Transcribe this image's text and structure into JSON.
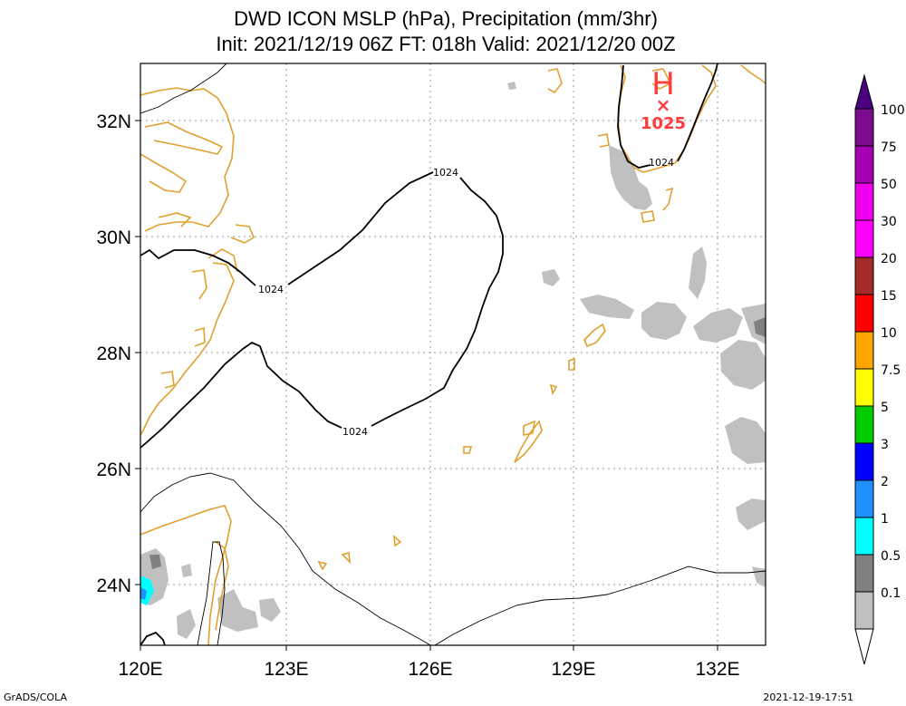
{
  "title_line1": "DWD ICON MSLP (hPa), Precipitation (mm/3hr)",
  "title_line2": "Init: 2021/12/19 06Z  FT: 018h  Valid: 2021/12/20 00Z",
  "lat_labels": [
    "32N",
    "30N",
    "28N",
    "26N",
    "24N"
  ],
  "lon_labels": [
    "120E",
    "123E",
    "126E",
    "129E",
    "132E"
  ],
  "isobar_labels": [
    "1024",
    "1024",
    "1024",
    "1024"
  ],
  "high": {
    "symbol": "H",
    "marker": "×",
    "pressure": "1025"
  },
  "colorbar": {
    "labels": [
      "100",
      "75",
      "50",
      "30",
      "20",
      "15",
      "10",
      "7.5",
      "5",
      "3",
      "2",
      "1",
      "0.5",
      "0.1"
    ],
    "colors": [
      "#7b0c8e",
      "#a600b2",
      "#ef00ef",
      "#ff00ff",
      "#a52a2a",
      "#ff0000",
      "#ffa500",
      "#ffff00",
      "#00cc00",
      "#0000ff",
      "#1e90ff",
      "#00ffff",
      "#808080",
      "#c0c0c0"
    ]
  },
  "footer_left": "GrADS/COLA",
  "footer_right": "2021-12-19-17:51"
}
